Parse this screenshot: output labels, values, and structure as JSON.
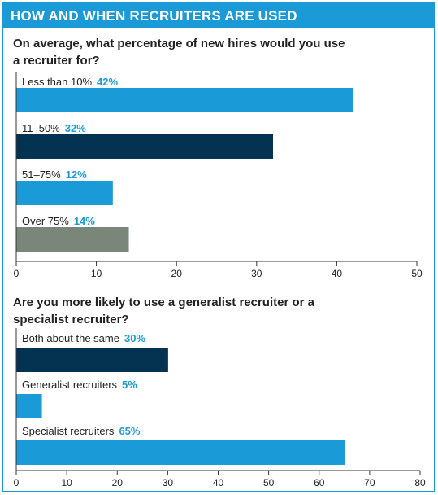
{
  "header": {
    "title": "HOW AND WHEN RECRUITERS ARE USED"
  },
  "colors": {
    "accent": "#1a9ad6",
    "navy": "#033350",
    "grey": "#7a867a",
    "text": "#222222"
  },
  "chart_data": [
    {
      "type": "bar",
      "orientation": "horizontal",
      "title": "On average, what percentage of new hires would you use a recruiter for?",
      "categories": [
        "Less than 10%",
        "11–50%",
        "51–75%",
        "Over 75%"
      ],
      "values": [
        42,
        32,
        12,
        14
      ],
      "value_labels": [
        "42%",
        "32%",
        "12%",
        "14%"
      ],
      "colors": [
        "#1a9ad6",
        "#033350",
        "#1a9ad6",
        "#7a867a"
      ],
      "xlim": [
        0,
        50
      ],
      "ticks": [
        0,
        10,
        20,
        30,
        40,
        50
      ],
      "grid": false
    },
    {
      "type": "bar",
      "orientation": "horizontal",
      "title": "Are you more likely to use a generalist recruiter or a specialist recruiter?",
      "categories": [
        "Both about the same",
        "Generalist recruiters",
        "Specialist recruiters"
      ],
      "values": [
        30,
        5,
        65
      ],
      "value_labels": [
        "30%",
        "5%",
        "65%"
      ],
      "colors": [
        "#033350",
        "#1a9ad6",
        "#1a9ad6"
      ],
      "xlim": [
        0,
        80
      ],
      "ticks": [
        0,
        10,
        20,
        30,
        40,
        50,
        60,
        70,
        80
      ],
      "grid": false
    }
  ]
}
